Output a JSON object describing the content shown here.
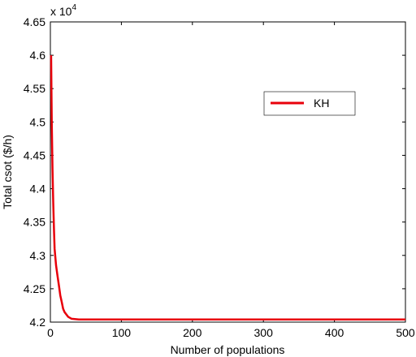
{
  "chart_data": {
    "type": "line",
    "title": "",
    "xlabel": "Number of populations",
    "ylabel": "Total csot ($/h)",
    "y_multiplier_label": "x 10",
    "y_multiplier_exponent": "4",
    "xlim": [
      0,
      500
    ],
    "ylim": [
      4.2,
      4.65
    ],
    "x_ticks": [
      0,
      100,
      200,
      300,
      400,
      500
    ],
    "x_tick_labels": [
      "0",
      "100",
      "200",
      "300",
      "400",
      "500"
    ],
    "y_ticks": [
      4.2,
      4.25,
      4.3,
      4.35,
      4.4,
      4.45,
      4.5,
      4.55,
      4.6,
      4.65
    ],
    "y_tick_labels": [
      "4.2",
      "4.25",
      "4.3",
      "4.35",
      "4.4",
      "4.45",
      "4.5",
      "4.55",
      "4.6",
      "4.65"
    ],
    "grid": false,
    "legend_position": "top-right",
    "series": [
      {
        "name": "KH",
        "color": "#e8000b",
        "x": [
          1,
          2,
          3,
          4,
          5,
          6,
          8,
          10,
          12,
          14,
          16,
          18,
          20,
          25,
          30,
          40,
          50,
          100,
          200,
          300,
          400,
          500
        ],
        "y": [
          4.6,
          4.5,
          4.43,
          4.38,
          4.34,
          4.31,
          4.285,
          4.27,
          4.255,
          4.24,
          4.23,
          4.22,
          4.215,
          4.208,
          4.205,
          4.204,
          4.204,
          4.204,
          4.204,
          4.204,
          4.204,
          4.204
        ]
      }
    ]
  }
}
